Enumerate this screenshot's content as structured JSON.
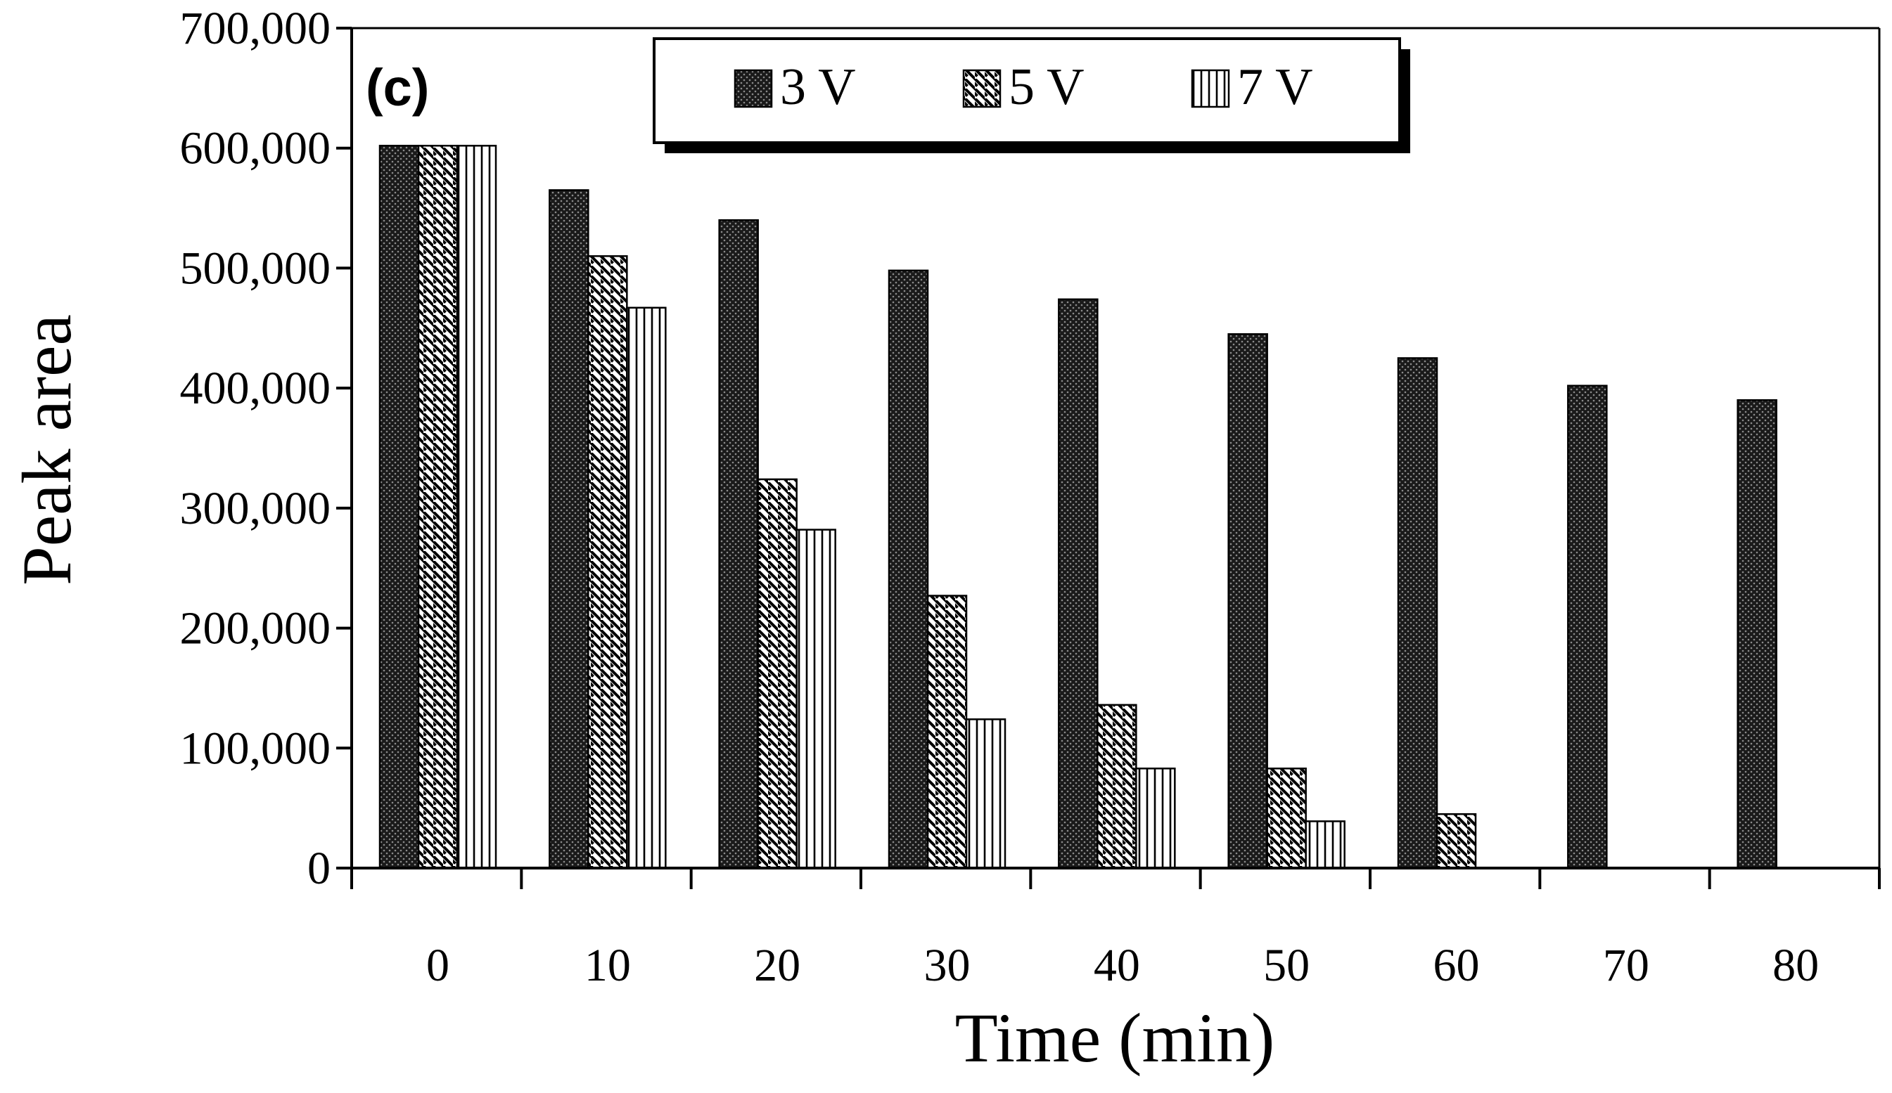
{
  "chart_data": {
    "type": "bar",
    "panel_label": "(c)",
    "xlabel": "Time (min)",
    "ylabel": "Peak area",
    "categories": [
      "0",
      "10",
      "20",
      "30",
      "40",
      "50",
      "60",
      "70",
      "80"
    ],
    "ylim": [
      0,
      700000
    ],
    "yticks": [
      0,
      100000,
      200000,
      300000,
      400000,
      500000,
      600000,
      700000
    ],
    "ytick_labels": [
      "0",
      "100,000",
      "200,000",
      "300,000",
      "400,000",
      "500,000",
      "600,000",
      "700,000"
    ],
    "grid": false,
    "legend_position": "top-center",
    "series": [
      {
        "name": "3 V",
        "pattern": "dotted-dark",
        "values": [
          602000,
          565000,
          540000,
          498000,
          474000,
          445000,
          425000,
          402000,
          390000
        ]
      },
      {
        "name": "5 V",
        "pattern": "diagonal-hatch",
        "values": [
          602000,
          510000,
          324000,
          227000,
          136000,
          83000,
          45000,
          null,
          null
        ]
      },
      {
        "name": "7 V",
        "pattern": "vertical-lines",
        "values": [
          602000,
          467000,
          282000,
          124000,
          83000,
          39000,
          null,
          null,
          null
        ]
      }
    ]
  }
}
